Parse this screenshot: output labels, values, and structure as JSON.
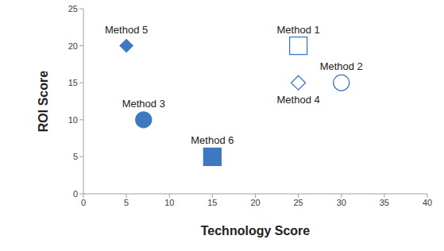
{
  "chart_data": {
    "type": "scatter",
    "x_label": "Technology Score",
    "y_label": "ROI Score",
    "xlim": [
      0,
      40
    ],
    "xticks": [
      0,
      5,
      10,
      15,
      20,
      25,
      30,
      35,
      40
    ],
    "ylim": [
      0,
      25
    ],
    "yticks": [
      0,
      5,
      10,
      15,
      20,
      25
    ],
    "grid": false,
    "series": [
      {
        "name": "Method 1",
        "color": "#3d78c0",
        "marker": "square_open",
        "x": [
          25
        ],
        "values": [
          20
        ]
      },
      {
        "name": "Method 2",
        "color": "#3d78c0",
        "marker": "circle_open",
        "x": [
          30
        ],
        "values": [
          15
        ]
      },
      {
        "name": "Method 3",
        "color": "#3d78c0",
        "marker": "circle",
        "x": [
          7
        ],
        "values": [
          10
        ]
      },
      {
        "name": "Method 4",
        "color": "#3d78c0",
        "marker": "diamond_open",
        "x": [
          25
        ],
        "values": [
          15
        ]
      },
      {
        "name": "Method 5",
        "color": "#3d78c0",
        "marker": "diamond",
        "x": [
          5
        ],
        "values": [
          20
        ]
      },
      {
        "name": "Method 6",
        "color": "#3d78c0",
        "marker": "square",
        "x": [
          15
        ],
        "values": [
          5
        ]
      }
    ]
  }
}
